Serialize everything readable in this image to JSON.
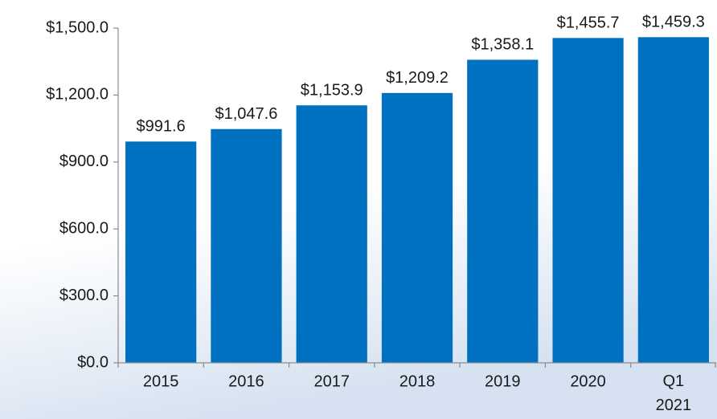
{
  "chart_data": {
    "type": "bar",
    "categories": [
      "2015",
      "2016",
      "2017",
      "2018",
      "2019",
      "2020",
      "Q1 2021"
    ],
    "values": [
      991.6,
      1047.6,
      1153.9,
      1209.2,
      1358.1,
      1455.7,
      1459.3
    ],
    "value_labels": [
      "$991.6",
      "$1,047.6",
      "$1,153.9",
      "$1,209.2",
      "$1,358.1",
      "$1,455.7",
      "$1,459.3"
    ],
    "color": "#0070c0",
    "ylim": [
      0,
      1500
    ],
    "yticks": [
      {
        "value": 0,
        "label": "$0.0"
      },
      {
        "value": 300,
        "label": "$300.0"
      },
      {
        "value": 600,
        "label": "$600.0"
      },
      {
        "value": 900,
        "label": "$900.0"
      },
      {
        "value": 1200,
        "label": "$1,200.0"
      },
      {
        "value": 1500,
        "label": "$1,500.0"
      }
    ],
    "grid": false
  }
}
